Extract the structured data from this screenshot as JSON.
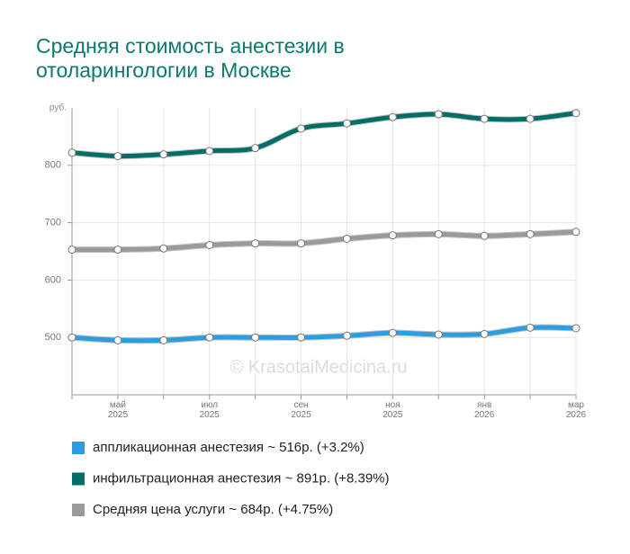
{
  "chart_data": {
    "type": "line",
    "title": "Средняя стоимость анестезии в отоларингологии в Москве",
    "y_unit": "руб.",
    "watermark": "© KrasotaiMedicina.ru",
    "categories": [
      null,
      "май\n2025",
      null,
      "июл\n2025",
      null,
      "сен\n2025",
      null,
      "ноя\n2025",
      null,
      "янв\n2026",
      null,
      "мар\n2026"
    ],
    "ylim": [
      400,
      900
    ],
    "yticks": [
      500,
      600,
      700,
      800
    ],
    "grid": true,
    "series": [
      {
        "name": "аппликационная анестезия ~ 516р. (+3.2%)",
        "color": "#2e9de0",
        "values": [
          500,
          495,
          495,
          500,
          500,
          500,
          503,
          508,
          505,
          506,
          517,
          516
        ]
      },
      {
        "name": "инфильтрационная анестезия ~ 891р. (+8.39%)",
        "color": "#006e64",
        "values": [
          822,
          816,
          819,
          825,
          830,
          864,
          873,
          884,
          889,
          881,
          881,
          891
        ]
      },
      {
        "name": "Средняя цена услуги ~ 684р. (+4.75%)",
        "color": "#9a9a9a",
        "values": [
          653,
          653,
          655,
          661,
          664,
          664,
          672,
          678,
          680,
          677,
          680,
          684
        ]
      }
    ]
  }
}
